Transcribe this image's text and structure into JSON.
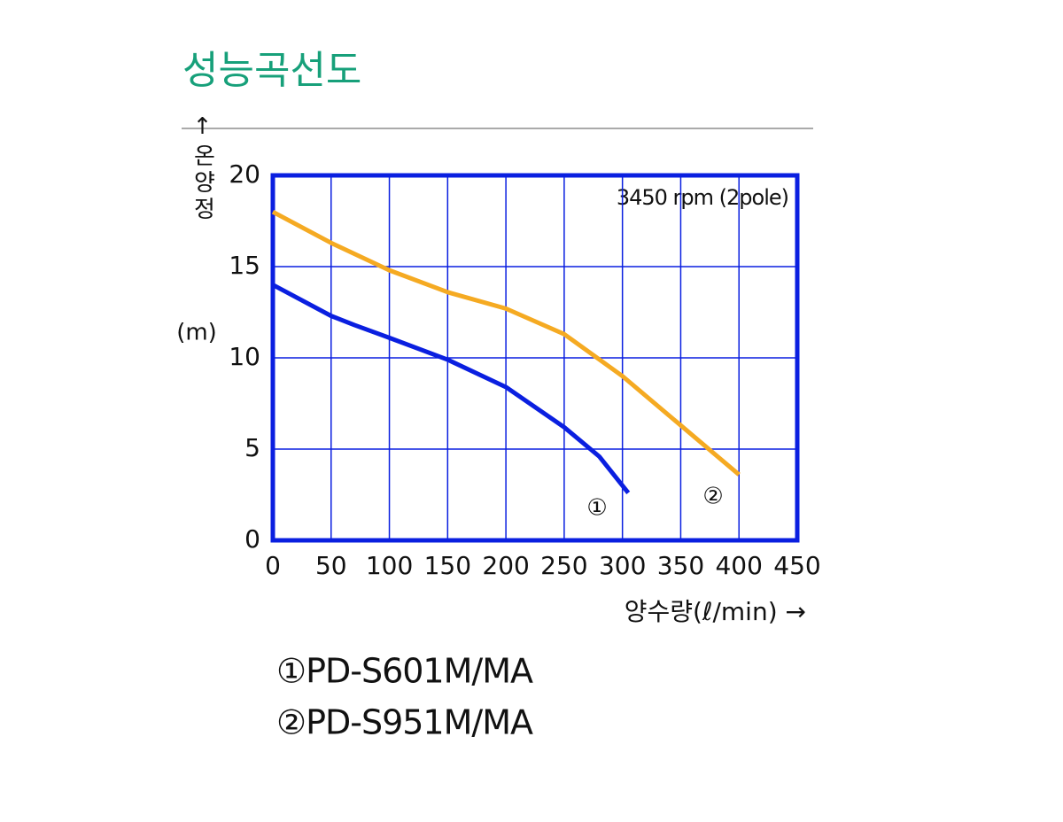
{
  "chart_data": {
    "type": "line",
    "title": "성능곡선도",
    "x_label": "양수량(ℓ/min) →",
    "y_label": "↑온양정",
    "y_unit": "(m)",
    "annotations": [
      "3450 rpm (2pole)",
      "①",
      "②"
    ],
    "series": [
      {
        "name": "①PD-S601M/MA",
        "color": "#0a1fe0",
        "x": [
          0,
          50,
          70,
          100,
          150,
          200,
          250,
          280,
          290,
          305
        ],
        "values": [
          14,
          12.3,
          11.8,
          11.1,
          9.9,
          8.4,
          6.2,
          4.6,
          3.8,
          2.6
        ]
      },
      {
        "name": "②PD-S951M/MA",
        "color": "#f5aa22",
        "x": [
          0,
          50,
          100,
          150,
          200,
          250,
          300,
          350,
          400
        ],
        "values": [
          18,
          16.3,
          14.8,
          13.6,
          12.7,
          11.3,
          9,
          6.3,
          3.6
        ]
      }
    ],
    "xlim": [
      0,
      450
    ],
    "xticks": [
      0,
      50,
      100,
      150,
      200,
      250,
      300,
      350,
      400,
      450
    ],
    "ylim": [
      0,
      20
    ],
    "yticks": [
      0,
      5,
      10,
      15,
      20
    ],
    "grid": true,
    "grid_color": "#0a1fe0"
  }
}
